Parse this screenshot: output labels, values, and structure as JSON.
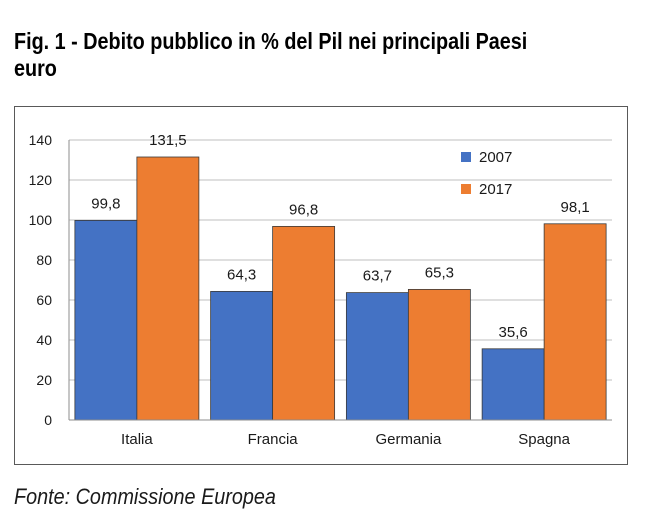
{
  "title": "Fig. 1 - Debito pubblico in % del Pil nei principali Paesi euro",
  "source": "Fonte: Commissione Europea",
  "chart_data": {
    "type": "bar",
    "title": "Fig. 1 - Debito pubblico in % del Pil nei principali Paesi euro",
    "categories": [
      "Italia",
      "Francia",
      "Germania",
      "Spagna"
    ],
    "series": [
      {
        "name": "2007",
        "color": "#4472c4",
        "values": [
          99.8,
          64.3,
          63.7,
          35.6
        ],
        "labels": [
          "99,8",
          "64,3",
          "63,7",
          "35,6"
        ]
      },
      {
        "name": "2017",
        "color": "#ed7d31",
        "values": [
          131.5,
          96.8,
          65.3,
          98.1
        ],
        "labels": [
          "131,5",
          "96,8",
          "65,3",
          "98,1"
        ]
      }
    ],
    "yticks": [
      0,
      20,
      40,
      60,
      80,
      100,
      120,
      140
    ],
    "ylim": [
      0,
      140
    ],
    "grid": true,
    "legend": "top-right",
    "xlabel": "",
    "ylabel": ""
  }
}
